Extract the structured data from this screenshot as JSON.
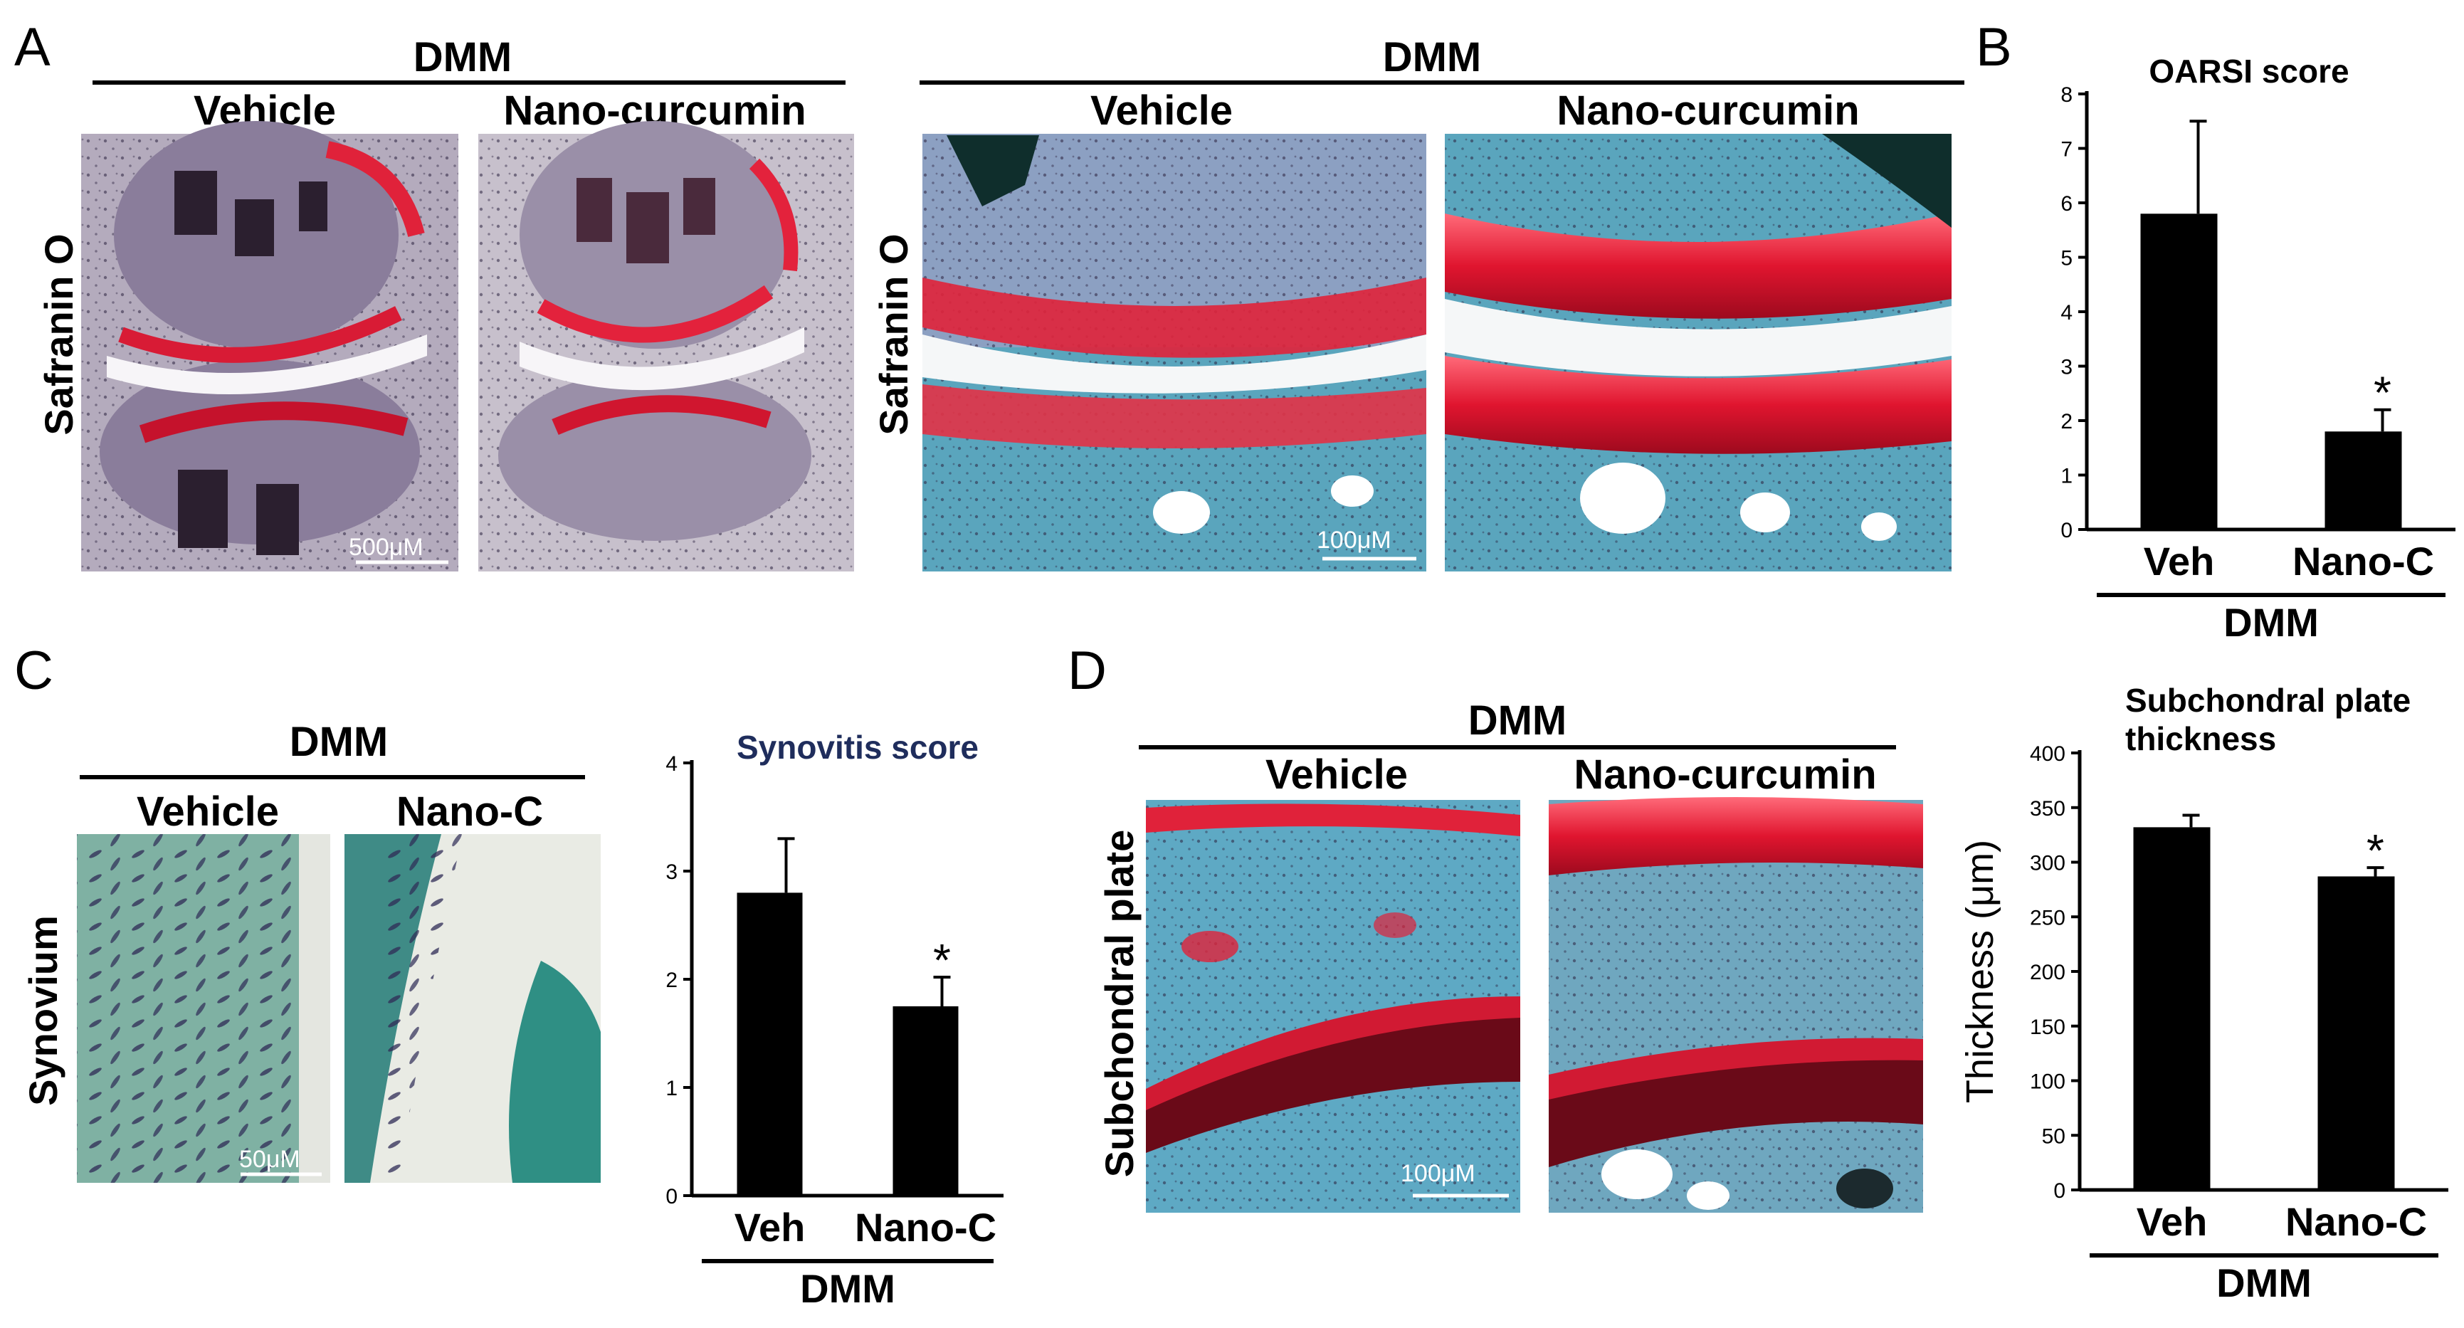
{
  "panels": {
    "A": {
      "letter": "A",
      "left_group": {
        "header": "DMM",
        "col1": "Vehicle",
        "col2": "Nano-curcumin",
        "side": "Safranin O",
        "scale": "500μM"
      },
      "right_group": {
        "header": "DMM",
        "col1": "Vehicle",
        "col2": "Nano-curcumin",
        "side": "Safranin O",
        "scale": "100μM"
      }
    },
    "B": {
      "letter": "B",
      "group_label": "DMM"
    },
    "C": {
      "letter": "C",
      "header": "DMM",
      "col1": "Vehicle",
      "col2": "Nano-C",
      "side": "Synovium",
      "scale": "50μM",
      "group_label": "DMM"
    },
    "D": {
      "letter": "D",
      "header": "DMM",
      "col1": "Vehicle",
      "col2": "Nano-curcumin",
      "side": "Subchondral plate",
      "scale": "100μM",
      "group_label": "DMM"
    }
  },
  "colors": {
    "safranin_red": "#e2243a",
    "fast_green": "#4fa3b8",
    "bone_purple": "#7c6f8f",
    "bar": "#000000"
  },
  "chart_data": [
    {
      "id": "oarsi",
      "type": "bar",
      "title": "OARSI score",
      "title_lines": [
        "OARSI score"
      ],
      "ylabel": "",
      "categories": [
        "Veh",
        "Nano-C"
      ],
      "values": [
        5.8,
        1.8
      ],
      "errors": [
        1.7,
        0.4
      ],
      "significance": [
        "",
        "*"
      ],
      "ylim": [
        0,
        8
      ],
      "yticks": [
        0,
        1,
        2,
        3,
        4,
        5,
        6,
        7,
        8
      ],
      "group_label": "DMM"
    },
    {
      "id": "synovitis",
      "type": "bar",
      "title": "Synovitis score",
      "title_lines": [
        "Synovitis score"
      ],
      "ylabel": "",
      "categories": [
        "Veh",
        "Nano-C"
      ],
      "values": [
        2.8,
        1.75
      ],
      "errors": [
        0.5,
        0.27
      ],
      "significance": [
        "",
        "*"
      ],
      "ylim": [
        0,
        4
      ],
      "yticks": [
        0,
        1,
        2,
        3,
        4
      ],
      "group_label": "DMM"
    },
    {
      "id": "subchondral",
      "type": "bar",
      "title": "Subchondral plate thickness",
      "title_lines": [
        "Subchondral plate",
        "thickness"
      ],
      "ylabel": "Thickness (μm)",
      "categories": [
        "Veh",
        "Nano-C"
      ],
      "values": [
        332,
        287
      ],
      "errors": [
        11,
        8
      ],
      "significance": [
        "",
        "*"
      ],
      "ylim": [
        0,
        400
      ],
      "yticks": [
        0,
        50,
        100,
        150,
        200,
        250,
        300,
        350,
        400
      ],
      "group_label": "DMM"
    }
  ]
}
